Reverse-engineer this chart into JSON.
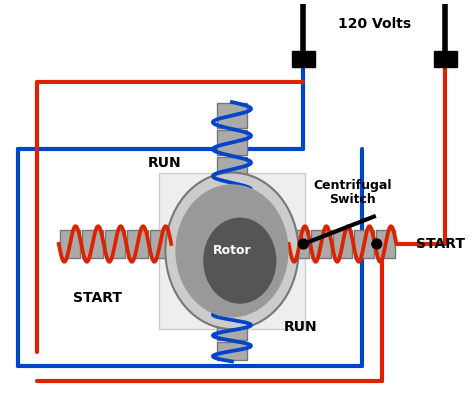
{
  "bg_color": "#ffffff",
  "red": "#dd2200",
  "blue": "#0044cc",
  "gray": "#aaaaaa",
  "dark_gray": "#777777",
  "black": "#000000",
  "title_voltage": "120 Volts",
  "label_centrifugal_1": "Centrifugal",
  "label_centrifugal_2": "Switch",
  "label_run_top": "RUN",
  "label_run_bot": "RUN",
  "label_start_left": "START",
  "label_start_right": "START",
  "label_rotor": "Rotor"
}
